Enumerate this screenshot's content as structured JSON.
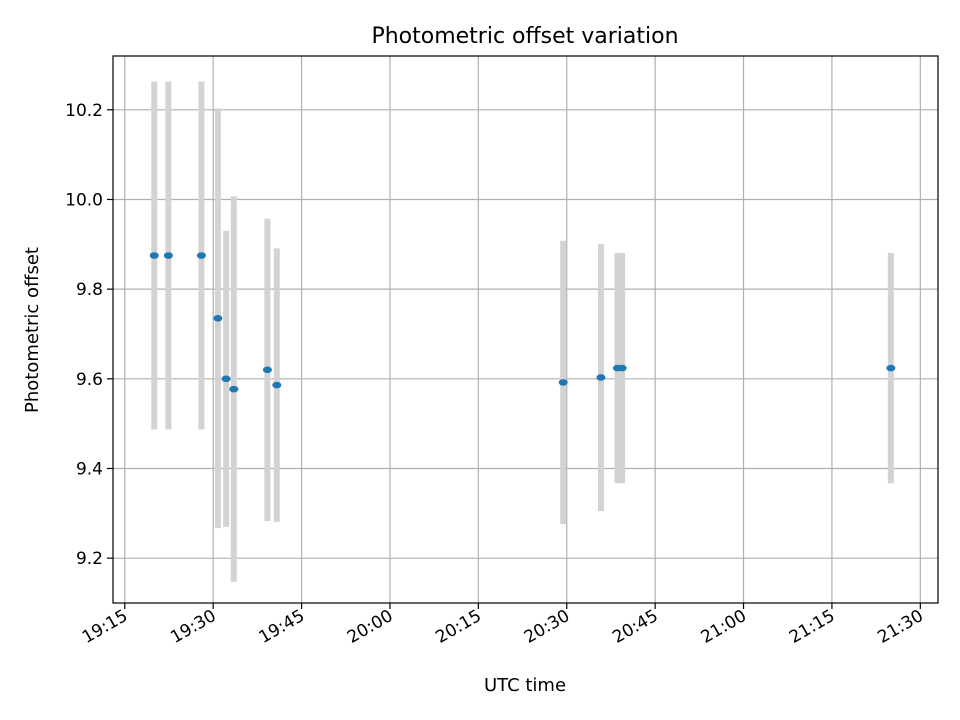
{
  "chart_data": {
    "type": "scatter",
    "title": "Photometric offset variation",
    "xlabel": "UTC time",
    "ylabel": "Photometric offset",
    "xlim": [
      "19:13",
      "21:33"
    ],
    "ylim": [
      9.1,
      10.32
    ],
    "grid": true,
    "x_ticks": [
      "19:15",
      "19:30",
      "19:45",
      "20:00",
      "20:15",
      "20:30",
      "20:45",
      "21:00",
      "21:15",
      "21:30"
    ],
    "y_ticks": [
      "9.2",
      "9.4",
      "9.6",
      "9.8",
      "10.0",
      "10.2"
    ],
    "colors": {
      "points": "#1f77b4",
      "errorbars": "#d3d3d3",
      "grid": "#b0b0b0"
    },
    "points": [
      {
        "x": "19:20",
        "y": 9.875,
        "err_low": 9.487,
        "err_high": 10.263
      },
      {
        "x": "19:22.4",
        "y": 9.875,
        "err_low": 9.487,
        "err_high": 10.263
      },
      {
        "x": "19:28",
        "y": 9.875,
        "err_low": 9.487,
        "err_high": 10.263
      },
      {
        "x": "19:30.8",
        "y": 9.735,
        "err_low": 9.267,
        "err_high": 10.203
      },
      {
        "x": "19:32.2",
        "y": 9.6,
        "err_low": 9.27,
        "err_high": 9.93
      },
      {
        "x": "19:33.5",
        "y": 9.577,
        "err_low": 9.147,
        "err_high": 10.007
      },
      {
        "x": "19:39.2",
        "y": 9.62,
        "err_low": 9.283,
        "err_high": 9.957
      },
      {
        "x": "19:40.8",
        "y": 9.586,
        "err_low": 9.281,
        "err_high": 9.891
      },
      {
        "x": "20:29.4",
        "y": 9.592,
        "err_low": 9.276,
        "err_high": 9.908
      },
      {
        "x": "20:35.8",
        "y": 9.603,
        "err_low": 9.305,
        "err_high": 9.901
      },
      {
        "x": "20:38.6",
        "y": 9.624,
        "err_low": 9.367,
        "err_high": 9.881
      },
      {
        "x": "20:39.4",
        "y": 9.624,
        "err_low": 9.367,
        "err_high": 9.881
      },
      {
        "x": "21:25",
        "y": 9.624,
        "err_low": 9.367,
        "err_high": 9.881
      }
    ]
  }
}
